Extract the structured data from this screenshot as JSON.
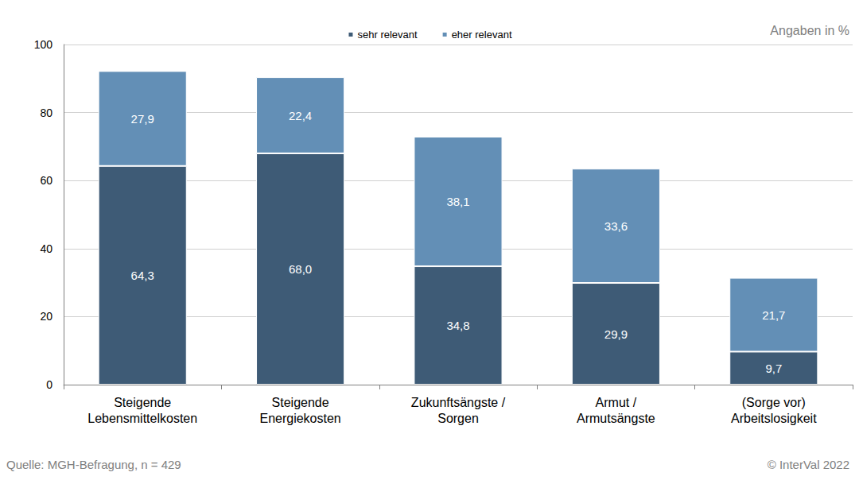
{
  "chart_data": {
    "type": "bar",
    "categories": [
      "Steigende\nLebensmittelkosten",
      "Steigende\nEnergiekosten",
      "Zukunftsängste /\nSorgen",
      "Armut /\nArmutsängste",
      "(Sorge vor)\nArbeitslosigkeit"
    ],
    "series": [
      {
        "name": "sehr relevant",
        "color": "#3e5b76",
        "values": [
          64.3,
          68.0,
          34.8,
          29.9,
          9.7
        ],
        "value_labels": [
          "64,3",
          "68,0",
          "34,8",
          "29,9",
          "9,7"
        ]
      },
      {
        "name": "eher relevant",
        "color": "#638fb6",
        "values": [
          27.9,
          22.4,
          38.1,
          33.6,
          21.7
        ],
        "value_labels": [
          "27,9",
          "22,4",
          "38,1",
          "33,6",
          "21,7"
        ]
      }
    ],
    "annotations": [
      "Angaben in %",
      "Quelle: MGH-Befragung, n = 429",
      "© InterVal 2022"
    ],
    "ylim": [
      0,
      100
    ],
    "yticks": [
      0,
      20,
      40,
      60,
      80,
      100
    ],
    "grid": true,
    "stacked": true,
    "data_labels": true,
    "legend": "top"
  }
}
